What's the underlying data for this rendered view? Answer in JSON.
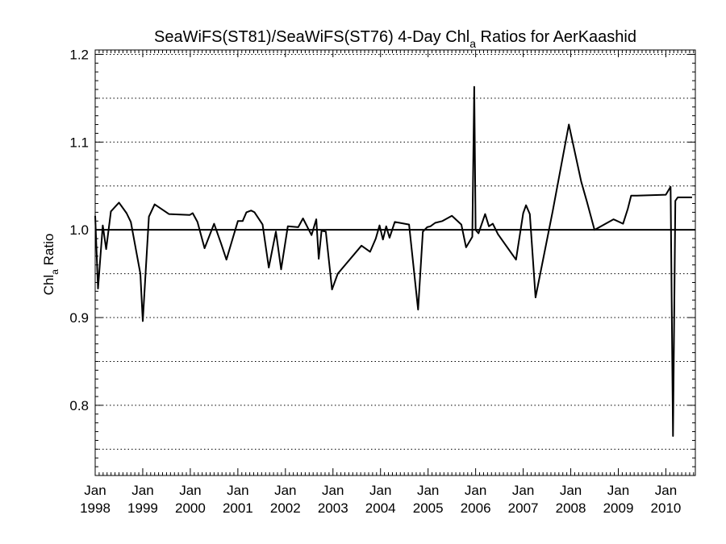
{
  "chart_data": {
    "type": "line",
    "title_main": "SeaWiFS(ST81)/SeaWiFS(ST76) 4-Day Chl",
    "title_sub": "a",
    "title_rest": " Ratios for AerKaashid",
    "ylabel_main": "Chl",
    "ylabel_sub": "a",
    "ylabel_rest": " Ratio",
    "ylim": [
      0.72,
      1.205
    ],
    "yticks": [
      0.8,
      0.9,
      1.0,
      1.1,
      1.2
    ],
    "ytick_labels": [
      "0.8",
      "0.9",
      "1.0",
      "1.1",
      "1.2"
    ],
    "gridlines_y": [
      0.75,
      0.8,
      0.85,
      0.9,
      0.95,
      1.0,
      1.05,
      1.1,
      1.15,
      1.2
    ],
    "reference_line": 1.0,
    "xlim": [
      1998.0,
      2010.62
    ],
    "xticks": [
      {
        "year": 1998,
        "month": "Jan",
        "label": "1998"
      },
      {
        "year": 1999,
        "month": "Jan",
        "label": "1999"
      },
      {
        "year": 2000,
        "month": "Jan",
        "label": "2000"
      },
      {
        "year": 2001,
        "month": "Jan",
        "label": "2001"
      },
      {
        "year": 2002,
        "month": "Jan",
        "label": "2002"
      },
      {
        "year": 2003,
        "month": "Jan",
        "label": "2003"
      },
      {
        "year": 2004,
        "month": "Jan",
        "label": "2004"
      },
      {
        "year": 2005,
        "month": "Jan",
        "label": "2005"
      },
      {
        "year": 2006,
        "month": "Jan",
        "label": "2006"
      },
      {
        "year": 2007,
        "month": "Jan",
        "label": "2007"
      },
      {
        "year": 2008,
        "month": "Jan",
        "label": "2008"
      },
      {
        "year": 2009,
        "month": "Jan",
        "label": "2009"
      },
      {
        "year": 2010,
        "month": "Jan",
        "label": "2010"
      }
    ],
    "x": [
      1997.95,
      1998.06,
      1998.16,
      1998.23,
      1998.33,
      1998.5,
      1998.66,
      1998.75,
      1998.95,
      1999.0,
      1999.13,
      1999.25,
      1999.55,
      1999.99,
      2000.05,
      2000.15,
      2000.3,
      2000.5,
      2000.65,
      2000.76,
      2000.89,
      2001.0,
      2001.1,
      2001.18,
      2001.28,
      2001.35,
      2001.52,
      2001.65,
      2001.8,
      2001.91,
      2002.05,
      2002.27,
      2002.37,
      2002.55,
      2002.65,
      2002.7,
      2002.76,
      2002.85,
      2002.98,
      2003.1,
      2003.6,
      2003.78,
      2003.9,
      2003.98,
      2004.05,
      2004.12,
      2004.19,
      2004.3,
      2004.6,
      2004.79,
      2004.89,
      2004.98,
      2005.05,
      2005.15,
      2005.3,
      2005.5,
      2005.58,
      2005.7,
      2005.8,
      2005.93,
      2005.97,
      2006.0,
      2006.06,
      2006.2,
      2006.28,
      2006.36,
      2006.47,
      2006.85,
      2007.0,
      2007.06,
      2007.14,
      2007.26,
      2007.62,
      2007.96,
      2008.22,
      2008.34,
      2008.5,
      2008.9,
      2009.1,
      2009.2,
      2009.27,
      2009.39,
      2010.0,
      2010.1,
      2010.15,
      2010.2,
      2010.25,
      2010.55
    ],
    "y": [
      1.016,
      0.933,
      1.005,
      0.978,
      1.021,
      1.031,
      1.019,
      1.009,
      0.95,
      0.896,
      1.015,
      1.029,
      1.018,
      1.017,
      1.019,
      1.009,
      0.979,
      1.007,
      0.984,
      0.966,
      0.99,
      1.01,
      1.01,
      1.02,
      1.022,
      1.02,
      1.006,
      0.957,
      0.998,
      0.955,
      1.004,
      1.003,
      1.013,
      0.994,
      1.012,
      0.967,
      0.999,
      0.998,
      0.932,
      0.95,
      0.982,
      0.975,
      0.99,
      1.005,
      0.989,
      1.004,
      0.991,
      1.009,
      1.006,
      0.909,
      0.998,
      1.003,
      1.004,
      1.008,
      1.01,
      1.016,
      1.012,
      1.006,
      0.98,
      0.992,
      1.163,
      1.0,
      0.996,
      1.018,
      1.004,
      1.007,
      0.995,
      0.966,
      1.019,
      1.028,
      1.018,
      0.923,
      1.021,
      1.12,
      1.055,
      1.032,
      1.0,
      1.012,
      1.007,
      1.024,
      1.039,
      1.039,
      1.04,
      1.049,
      0.765,
      1.033,
      1.037,
      1.037
    ],
    "grid": "horizontal dotted",
    "legend": "none"
  }
}
